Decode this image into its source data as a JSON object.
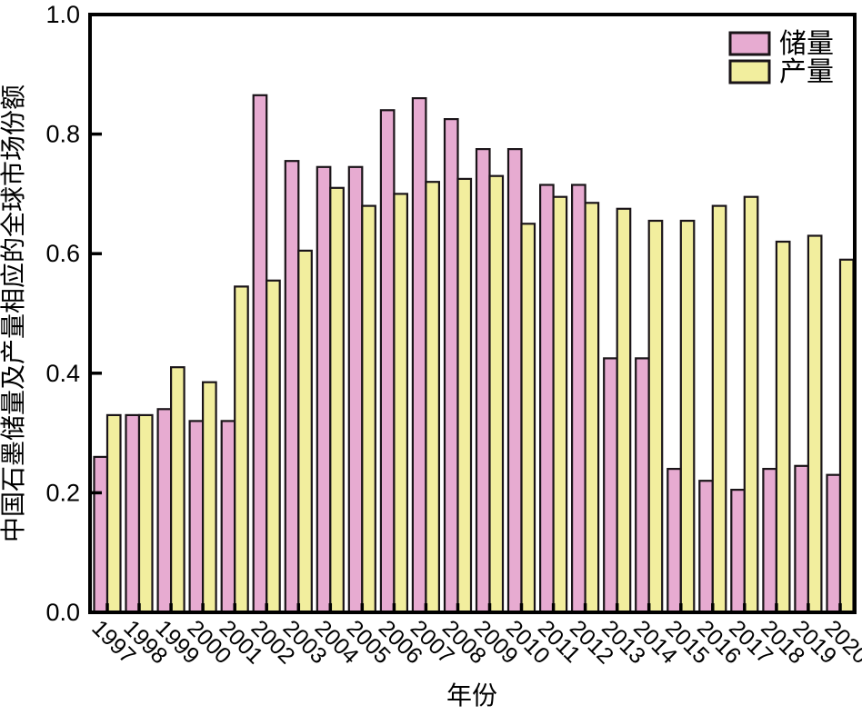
{
  "figure": {
    "background": "#ffffff",
    "frame_color": "#000000",
    "tick_color": "#000000"
  },
  "chart_data": {
    "type": "bar",
    "title": "",
    "xlabel": "年份",
    "ylabel": "中国石墨储量及产量相应的全球市场份额",
    "categories": [
      "1997",
      "1998",
      "1999",
      "2000",
      "2001",
      "2002",
      "2003",
      "2004",
      "2005",
      "2006",
      "2007",
      "2008",
      "2009",
      "2010",
      "2011",
      "2012",
      "2013",
      "2014",
      "2015",
      "2016",
      "2017",
      "2018",
      "2019",
      "2020"
    ],
    "series": [
      {
        "name": "储量",
        "key": "reserves",
        "color": "#e7abd1",
        "values": [
          0.26,
          0.33,
          0.34,
          0.32,
          0.32,
          0.865,
          0.755,
          0.745,
          0.745,
          0.84,
          0.86,
          0.825,
          0.775,
          0.775,
          0.715,
          0.715,
          0.425,
          0.425,
          0.24,
          0.22,
          0.205,
          0.24,
          0.245,
          0.23
        ]
      },
      {
        "name": "产量",
        "key": "production",
        "color": "#f2ee9e",
        "values": [
          0.33,
          0.33,
          0.41,
          0.385,
          0.545,
          0.555,
          0.605,
          0.71,
          0.68,
          0.7,
          0.72,
          0.725,
          0.73,
          0.65,
          0.695,
          0.685,
          0.675,
          0.655,
          0.655,
          0.68,
          0.695,
          0.62,
          0.63,
          0.59
        ]
      }
    ],
    "ylim": [
      0.0,
      1.0
    ],
    "yticks": [
      0.0,
      0.2,
      0.4,
      0.6,
      0.8,
      1.0
    ],
    "ytick_labels": [
      "0.0",
      "0.2",
      "0.4",
      "0.6",
      "0.8",
      "1.0"
    ],
    "bar_edge_color": "#1a1418",
    "legend_position": "top-right",
    "grid": false
  }
}
